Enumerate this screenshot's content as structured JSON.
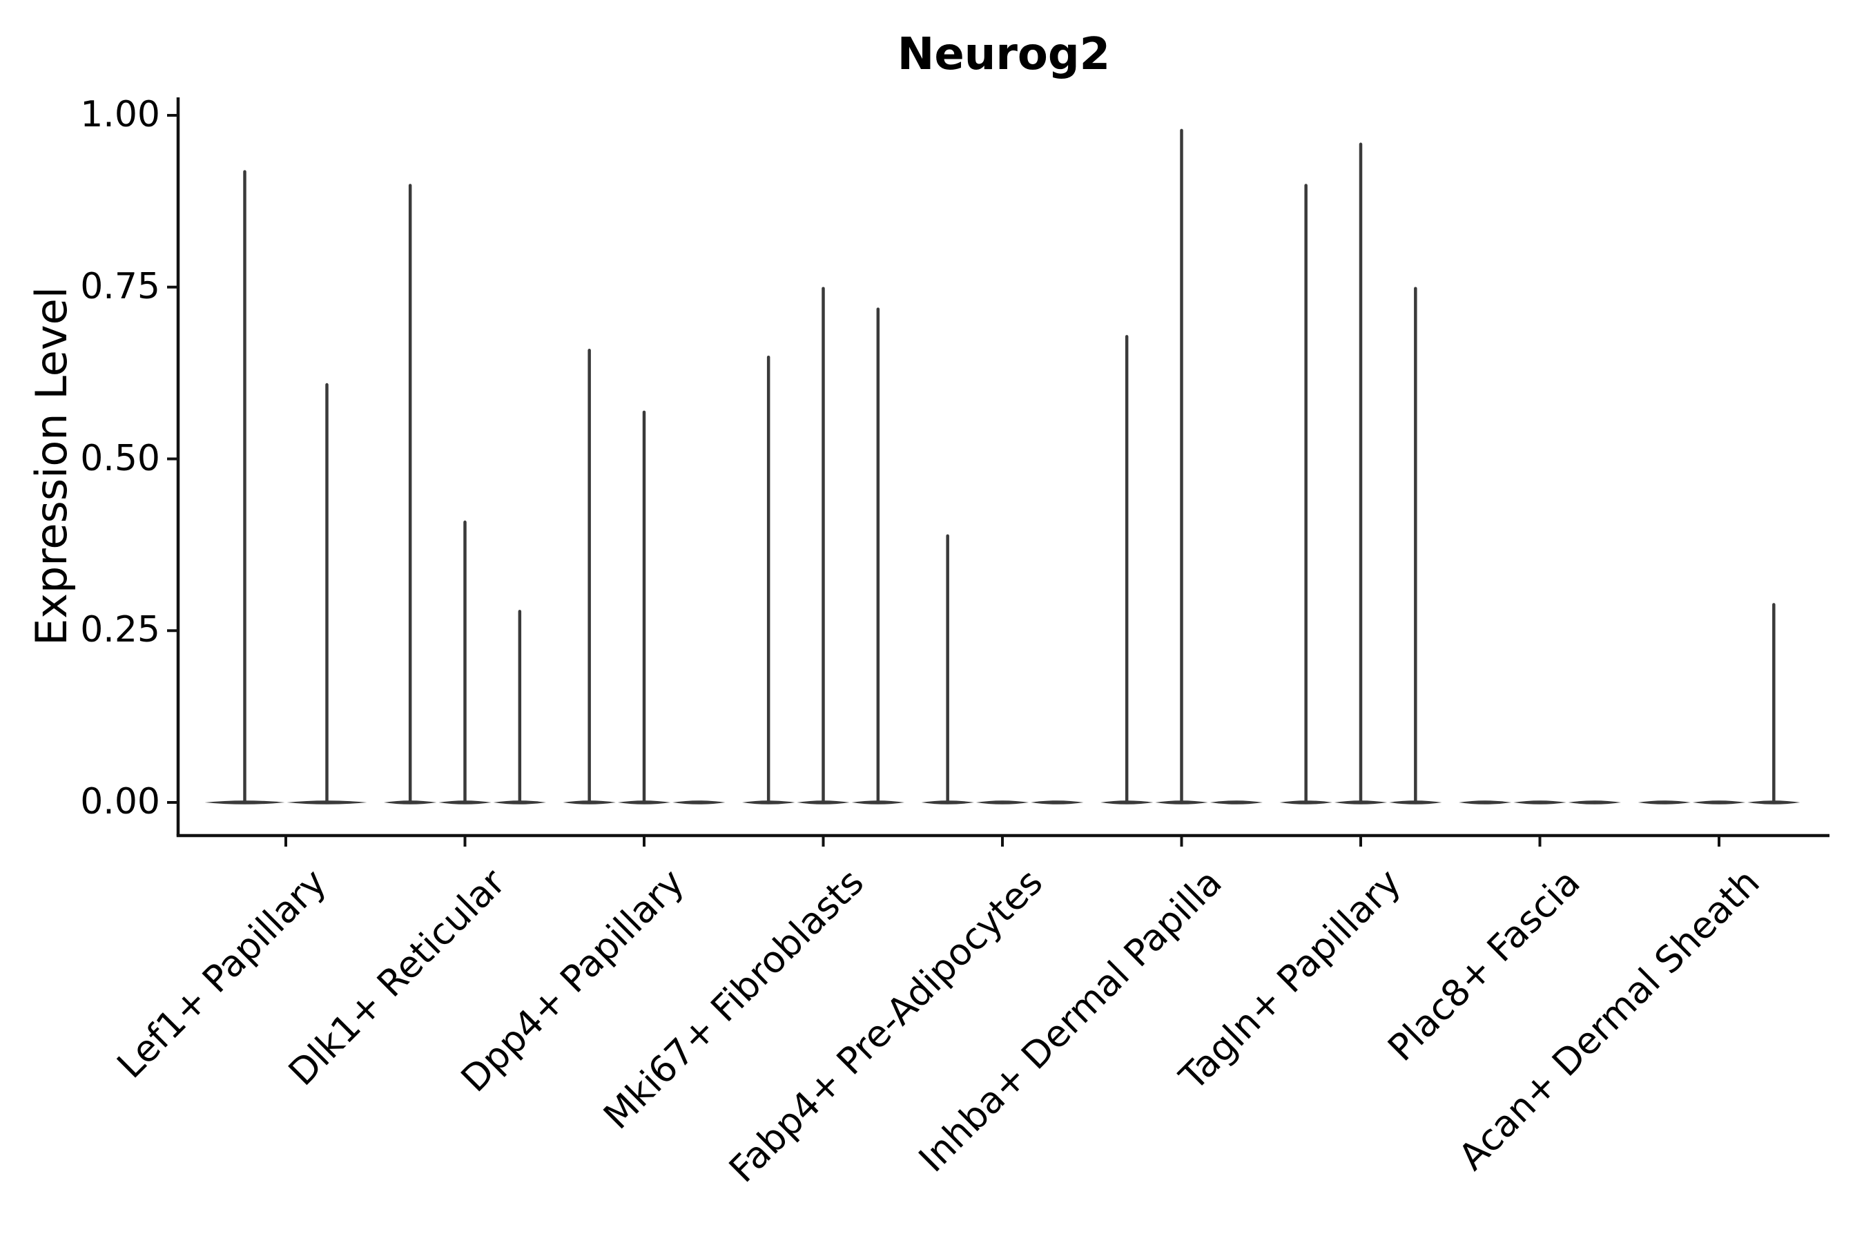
{
  "page": {
    "background": "#ffffff"
  },
  "colors": {
    "violin": "#3a3a3a",
    "axis": "#111111",
    "text": "#000000",
    "background": "#ffffff"
  },
  "chart_data": {
    "type": "violin",
    "title": "Neurog2",
    "xlabel": "",
    "ylabel": "Expression Level",
    "ylim": [
      0,
      1.04
    ],
    "grid": false,
    "legend": "none",
    "ytick_labels": [
      "1.00",
      "0.75",
      "0.50",
      "0.25",
      "0.00"
    ],
    "ytick_values": [
      1.0,
      0.75,
      0.5,
      0.25,
      0.0
    ],
    "categories": [
      "Lef1+ Papillary",
      "Dlk1+ Reticular",
      "Dpp4+ Papillary",
      "Mki67+ Fibroblasts",
      "Fabp4+ Pre-Adipocytes",
      "Inhba+ Dermal Papilla",
      "Tagln+ Papillary",
      "Plac8+ Fascia",
      "Acan+ Dermal Sheath"
    ],
    "series": [
      {
        "category": "Lef1+ Papillary",
        "violin_max_values": [
          0.92,
          0.61
        ]
      },
      {
        "category": "Dlk1+ Reticular",
        "violin_max_values": [
          0.9,
          0.41,
          0.28
        ]
      },
      {
        "category": "Dpp4+ Papillary",
        "violin_max_values": [
          0.66,
          0.57,
          0
        ]
      },
      {
        "category": "Mki67+ Fibroblasts",
        "violin_max_values": [
          0.65,
          0.75,
          0.72
        ]
      },
      {
        "category": "Fabp4+ Pre-Adipocytes",
        "violin_max_values": [
          0.39,
          0,
          0
        ]
      },
      {
        "category": "Inhba+ Dermal Papilla",
        "violin_max_values": [
          0.68,
          0.98,
          0
        ]
      },
      {
        "category": "Tagln+ Papillary",
        "violin_max_values": [
          0.9,
          0.96,
          0.75
        ]
      },
      {
        "category": "Plac8+ Fascia",
        "violin_max_values": [
          0,
          0,
          0
        ]
      },
      {
        "category": "Acan+ Dermal Sheath",
        "violin_max_values": [
          0,
          0,
          0.29
        ]
      }
    ]
  }
}
